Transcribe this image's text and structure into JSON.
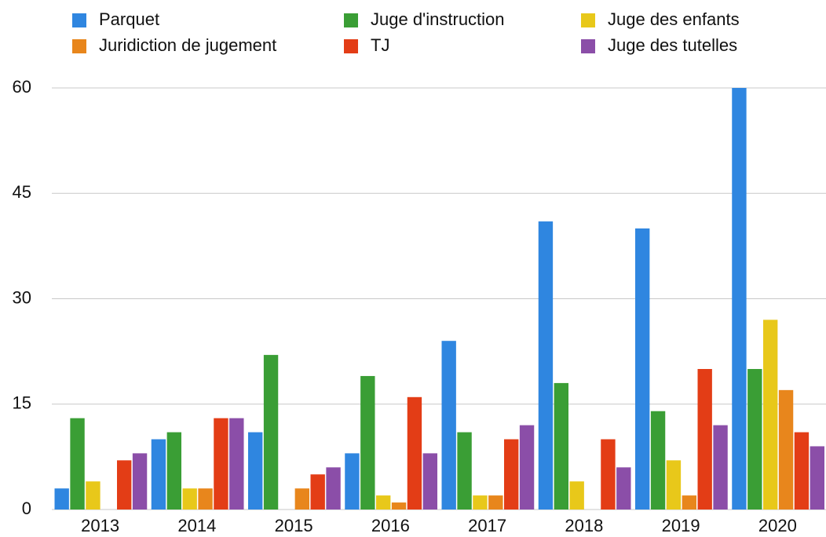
{
  "chart_data": {
    "type": "bar",
    "categories": [
      "2013",
      "2014",
      "2015",
      "2016",
      "2017",
      "2018",
      "2019",
      "2020"
    ],
    "series": [
      {
        "name": "Parquet",
        "color": "#2f86e0",
        "values": [
          3,
          10,
          11,
          8,
          24,
          41,
          40,
          60
        ]
      },
      {
        "name": "Juge d'instruction",
        "color": "#3a9e35",
        "values": [
          13,
          11,
          22,
          19,
          11,
          18,
          14,
          20
        ]
      },
      {
        "name": "Juge des enfants",
        "color": "#e8c81a",
        "values": [
          4,
          3,
          0,
          2,
          2,
          4,
          7,
          27
        ]
      },
      {
        "name": "Juridiction de jugement",
        "color": "#e8861c",
        "values": [
          0,
          3,
          3,
          1,
          2,
          0,
          2,
          17
        ]
      },
      {
        "name": "TJ",
        "color": "#e33d16",
        "values": [
          7,
          13,
          5,
          16,
          10,
          10,
          20,
          11
        ]
      },
      {
        "name": "Juge des tutelles",
        "color": "#8b4ea8",
        "values": [
          8,
          13,
          6,
          8,
          12,
          6,
          12,
          9
        ]
      }
    ],
    "ylim": [
      0,
      60
    ],
    "yticks": [
      0,
      15,
      30,
      45,
      60
    ],
    "grid": true,
    "legend": "top"
  }
}
